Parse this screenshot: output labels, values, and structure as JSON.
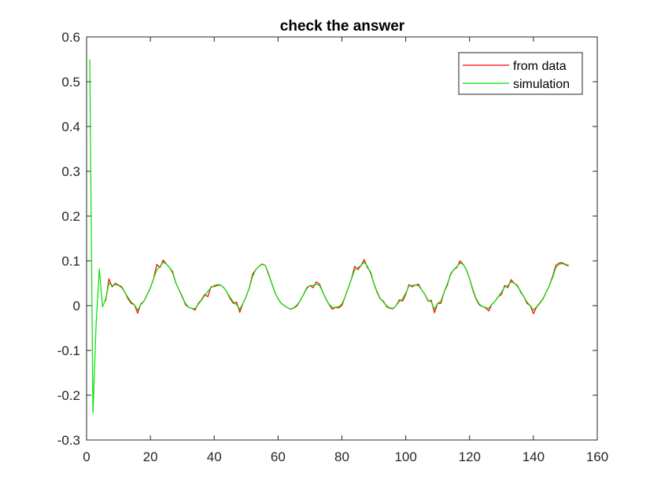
{
  "chart_data": {
    "type": "line",
    "title": "check the answer",
    "xlabel": "",
    "ylabel": "",
    "xlim": [
      0,
      160
    ],
    "ylim": [
      -0.3,
      0.6
    ],
    "xticks": [
      0,
      20,
      40,
      60,
      80,
      100,
      120,
      140,
      160
    ],
    "yticks": [
      -0.3,
      -0.2,
      -0.1,
      0,
      0.1,
      0.2,
      0.3,
      0.4,
      0.5,
      0.6
    ],
    "xtick_labels": [
      "0",
      "20",
      "40",
      "60",
      "80",
      "100",
      "120",
      "140",
      "160"
    ],
    "ytick_labels": [
      "-0.3",
      "-0.2",
      "-0.1",
      "0",
      "0.1",
      "0.2",
      "0.3",
      "0.4",
      "0.5",
      "0.6"
    ],
    "grid": false,
    "legend_position": "top-right",
    "series": [
      {
        "name": "from data",
        "color": "#ff0000",
        "points": [
          [
            6,
            0.01
          ],
          [
            7,
            0.06
          ],
          [
            8,
            0.042
          ],
          [
            9,
            0.05
          ],
          [
            10,
            0.046
          ],
          [
            11,
            0.042
          ],
          [
            12,
            0.03
          ],
          [
            13,
            0.015
          ],
          [
            14,
            0.005
          ],
          [
            15,
            0.002
          ],
          [
            16,
            -0.017
          ],
          [
            17,
            0.004
          ],
          [
            18,
            0.01
          ],
          [
            19,
            0.025
          ],
          [
            20,
            0.04
          ],
          [
            21,
            0.06
          ],
          [
            22,
            0.092
          ],
          [
            23,
            0.085
          ],
          [
            24,
            0.102
          ],
          [
            25,
            0.093
          ],
          [
            26,
            0.085
          ],
          [
            27,
            0.075
          ],
          [
            28,
            0.05
          ],
          [
            29,
            0.035
          ],
          [
            30,
            0.02
          ],
          [
            31,
            0.002
          ],
          [
            32,
            -0.004
          ],
          [
            33,
            -0.006
          ],
          [
            34,
            -0.01
          ],
          [
            35,
            0.005
          ],
          [
            36,
            0.013
          ],
          [
            37,
            0.025
          ],
          [
            38,
            0.02
          ],
          [
            39,
            0.042
          ],
          [
            40,
            0.043
          ],
          [
            41,
            0.045
          ],
          [
            42,
            0.046
          ],
          [
            43,
            0.04
          ],
          [
            44,
            0.03
          ],
          [
            45,
            0.015
          ],
          [
            46,
            0.005
          ],
          [
            47,
            0.008
          ],
          [
            48,
            -0.015
          ],
          [
            49,
            0.005
          ],
          [
            50,
            0.02
          ],
          [
            51,
            0.04
          ],
          [
            52,
            0.07
          ],
          [
            53,
            0.08
          ],
          [
            54,
            0.088
          ],
          [
            55,
            0.093
          ],
          [
            56,
            0.09
          ],
          [
            57,
            0.07
          ],
          [
            58,
            0.05
          ],
          [
            59,
            0.03
          ],
          [
            60,
            0.015
          ],
          [
            61,
            0.005
          ],
          [
            62,
            0.0
          ],
          [
            63,
            -0.005
          ],
          [
            64,
            -0.008
          ],
          [
            65,
            -0.005
          ],
          [
            66,
            0.0
          ],
          [
            67,
            0.012
          ],
          [
            68,
            0.025
          ],
          [
            69,
            0.04
          ],
          [
            70,
            0.045
          ],
          [
            71,
            0.04
          ],
          [
            72,
            0.053
          ],
          [
            73,
            0.048
          ],
          [
            74,
            0.03
          ],
          [
            75,
            0.015
          ],
          [
            76,
            0.002
          ],
          [
            77,
            -0.008
          ],
          [
            78,
            -0.004
          ],
          [
            79,
            -0.005
          ],
          [
            80,
            0.0
          ],
          [
            81,
            0.02
          ],
          [
            82,
            0.04
          ],
          [
            83,
            0.06
          ],
          [
            84,
            0.088
          ],
          [
            85,
            0.08
          ],
          [
            86,
            0.09
          ],
          [
            87,
            0.103
          ],
          [
            88,
            0.085
          ],
          [
            89,
            0.075
          ],
          [
            90,
            0.05
          ],
          [
            91,
            0.03
          ],
          [
            92,
            0.015
          ],
          [
            93,
            0.01
          ],
          [
            94,
            -0.002
          ],
          [
            95,
            -0.006
          ],
          [
            96,
            -0.007
          ],
          [
            97,
            0.0
          ],
          [
            98,
            0.013
          ],
          [
            99,
            0.01
          ],
          [
            100,
            0.025
          ],
          [
            101,
            0.047
          ],
          [
            102,
            0.042
          ],
          [
            103,
            0.046
          ],
          [
            104,
            0.048
          ],
          [
            105,
            0.035
          ],
          [
            106,
            0.025
          ],
          [
            107,
            0.01
          ],
          [
            108,
            0.012
          ],
          [
            109,
            -0.016
          ],
          [
            110,
            0.005
          ],
          [
            111,
            0.005
          ],
          [
            112,
            0.03
          ],
          [
            113,
            0.045
          ],
          [
            114,
            0.07
          ],
          [
            115,
            0.08
          ],
          [
            116,
            0.085
          ],
          [
            117,
            0.1
          ],
          [
            118,
            0.092
          ],
          [
            119,
            0.08
          ],
          [
            120,
            0.06
          ],
          [
            121,
            0.035
          ],
          [
            122,
            0.015
          ],
          [
            123,
            0.002
          ],
          [
            124,
            -0.002
          ],
          [
            125,
            -0.005
          ],
          [
            126,
            -0.012
          ],
          [
            127,
            0.003
          ],
          [
            128,
            0.01
          ],
          [
            129,
            0.02
          ],
          [
            130,
            0.025
          ],
          [
            131,
            0.045
          ],
          [
            132,
            0.04
          ],
          [
            133,
            0.058
          ],
          [
            134,
            0.05
          ],
          [
            135,
            0.045
          ],
          [
            136,
            0.03
          ],
          [
            137,
            0.02
          ],
          [
            138,
            0.005
          ],
          [
            139,
            0.0
          ],
          [
            140,
            -0.018
          ],
          [
            141,
            -0.003
          ],
          [
            142,
            0.005
          ],
          [
            143,
            0.015
          ],
          [
            144,
            0.03
          ],
          [
            145,
            0.045
          ],
          [
            146,
            0.065
          ],
          [
            147,
            0.09
          ],
          [
            148,
            0.095
          ],
          [
            149,
            0.096
          ],
          [
            150,
            0.092
          ],
          [
            151,
            0.09
          ]
        ]
      },
      {
        "name": "simulation",
        "color": "#00e000",
        "points": [
          [
            1,
            0.55
          ],
          [
            2,
            -0.24
          ],
          [
            3,
            -0.04
          ],
          [
            4,
            0.082
          ],
          [
            5,
            -0.003
          ],
          [
            6,
            0.015
          ],
          [
            7,
            0.05
          ],
          [
            8,
            0.045
          ],
          [
            9,
            0.047
          ],
          [
            10,
            0.045
          ],
          [
            11,
            0.04
          ],
          [
            12,
            0.03
          ],
          [
            13,
            0.018
          ],
          [
            14,
            0.008
          ],
          [
            15,
            0.002
          ],
          [
            16,
            -0.01
          ],
          [
            17,
            0.002
          ],
          [
            18,
            0.01
          ],
          [
            19,
            0.025
          ],
          [
            20,
            0.04
          ],
          [
            21,
            0.06
          ],
          [
            22,
            0.08
          ],
          [
            23,
            0.088
          ],
          [
            24,
            0.097
          ],
          [
            25,
            0.093
          ],
          [
            26,
            0.085
          ],
          [
            27,
            0.072
          ],
          [
            28,
            0.05
          ],
          [
            29,
            0.035
          ],
          [
            30,
            0.018
          ],
          [
            31,
            0.005
          ],
          [
            32,
            -0.004
          ],
          [
            33,
            -0.006
          ],
          [
            34,
            -0.007
          ],
          [
            35,
            0.003
          ],
          [
            36,
            0.012
          ],
          [
            37,
            0.022
          ],
          [
            38,
            0.032
          ],
          [
            39,
            0.04
          ],
          [
            40,
            0.045
          ],
          [
            41,
            0.047
          ],
          [
            42,
            0.046
          ],
          [
            43,
            0.04
          ],
          [
            44,
            0.03
          ],
          [
            45,
            0.018
          ],
          [
            46,
            0.008
          ],
          [
            47,
            0.002
          ],
          [
            48,
            -0.008
          ],
          [
            49,
            0.005
          ],
          [
            50,
            0.02
          ],
          [
            51,
            0.04
          ],
          [
            52,
            0.065
          ],
          [
            53,
            0.08
          ],
          [
            54,
            0.088
          ],
          [
            55,
            0.092
          ],
          [
            56,
            0.09
          ],
          [
            57,
            0.072
          ],
          [
            58,
            0.05
          ],
          [
            59,
            0.03
          ],
          [
            60,
            0.015
          ],
          [
            61,
            0.005
          ],
          [
            62,
            0.0
          ],
          [
            63,
            -0.005
          ],
          [
            64,
            -0.008
          ],
          [
            65,
            -0.004
          ],
          [
            66,
            0.002
          ],
          [
            67,
            0.012
          ],
          [
            68,
            0.025
          ],
          [
            69,
            0.038
          ],
          [
            70,
            0.045
          ],
          [
            71,
            0.045
          ],
          [
            72,
            0.048
          ],
          [
            73,
            0.045
          ],
          [
            74,
            0.03
          ],
          [
            75,
            0.015
          ],
          [
            76,
            0.003
          ],
          [
            77,
            -0.004
          ],
          [
            78,
            -0.004
          ],
          [
            79,
            -0.002
          ],
          [
            80,
            0.004
          ],
          [
            81,
            0.02
          ],
          [
            82,
            0.04
          ],
          [
            83,
            0.06
          ],
          [
            84,
            0.08
          ],
          [
            85,
            0.085
          ],
          [
            86,
            0.09
          ],
          [
            87,
            0.097
          ],
          [
            88,
            0.088
          ],
          [
            89,
            0.072
          ],
          [
            90,
            0.05
          ],
          [
            91,
            0.032
          ],
          [
            92,
            0.016
          ],
          [
            93,
            0.008
          ],
          [
            94,
            0.0
          ],
          [
            95,
            -0.005
          ],
          [
            96,
            -0.006
          ],
          [
            97,
            0.0
          ],
          [
            98,
            0.01
          ],
          [
            99,
            0.015
          ],
          [
            100,
            0.028
          ],
          [
            101,
            0.044
          ],
          [
            102,
            0.045
          ],
          [
            103,
            0.046
          ],
          [
            104,
            0.045
          ],
          [
            105,
            0.035
          ],
          [
            106,
            0.025
          ],
          [
            107,
            0.012
          ],
          [
            108,
            0.008
          ],
          [
            109,
            -0.008
          ],
          [
            110,
            0.005
          ],
          [
            111,
            0.01
          ],
          [
            112,
            0.03
          ],
          [
            113,
            0.048
          ],
          [
            114,
            0.068
          ],
          [
            115,
            0.08
          ],
          [
            116,
            0.087
          ],
          [
            117,
            0.095
          ],
          [
            118,
            0.092
          ],
          [
            119,
            0.08
          ],
          [
            120,
            0.06
          ],
          [
            121,
            0.037
          ],
          [
            122,
            0.017
          ],
          [
            123,
            0.004
          ],
          [
            124,
            -0.002
          ],
          [
            125,
            -0.004
          ],
          [
            126,
            -0.006
          ],
          [
            127,
            0.003
          ],
          [
            128,
            0.01
          ],
          [
            129,
            0.02
          ],
          [
            130,
            0.03
          ],
          [
            131,
            0.042
          ],
          [
            132,
            0.045
          ],
          [
            133,
            0.053
          ],
          [
            134,
            0.05
          ],
          [
            135,
            0.043
          ],
          [
            136,
            0.032
          ],
          [
            137,
            0.02
          ],
          [
            138,
            0.008
          ],
          [
            139,
            0.0
          ],
          [
            140,
            -0.01
          ],
          [
            141,
            -0.002
          ],
          [
            142,
            0.006
          ],
          [
            143,
            0.016
          ],
          [
            144,
            0.03
          ],
          [
            145,
            0.045
          ],
          [
            146,
            0.062
          ],
          [
            147,
            0.085
          ],
          [
            148,
            0.092
          ],
          [
            149,
            0.094
          ],
          [
            150,
            0.091
          ],
          [
            151,
            0.088
          ]
        ]
      }
    ]
  }
}
